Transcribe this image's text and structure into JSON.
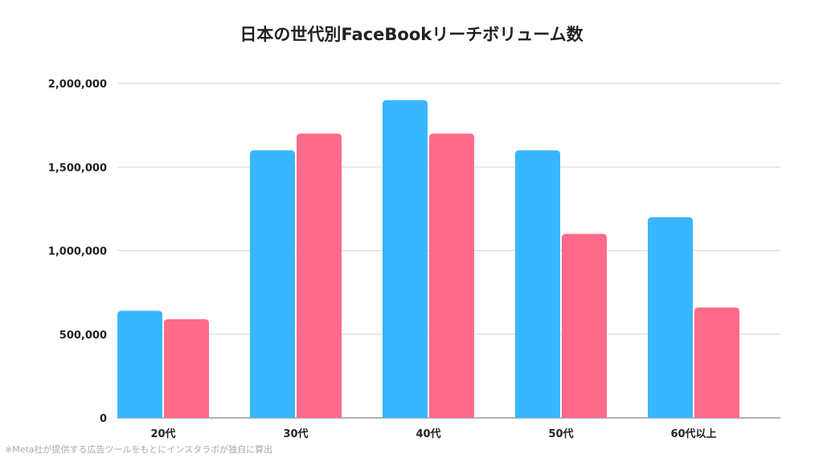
{
  "chart_data": {
    "type": "bar",
    "title": "日本の世代別FaceBookリーチボリューム数",
    "xlabel": "",
    "ylabel": "",
    "categories": [
      "20代",
      "30代",
      "40代",
      "50代",
      "60代以上"
    ],
    "series": [
      {
        "values": [
          640000,
          1600000,
          1900000,
          1600000,
          1200000
        ],
        "color": "#38b6ff"
      },
      {
        "values": [
          590000,
          1700000,
          1700000,
          1100000,
          660000
        ],
        "color": "#ff6b8a"
      }
    ],
    "ylim": [
      0,
      2000000
    ],
    "yticks": [
      0,
      500000,
      1000000,
      1500000,
      2000000
    ],
    "ytick_labels": [
      "0",
      "500,000",
      "1,000,000",
      "1,500,000",
      "2,000,000"
    ],
    "grid": true,
    "legend": "none"
  },
  "footnote": "※Meta社が提供する広告ツールをもとにインスタラボが独自に算出"
}
